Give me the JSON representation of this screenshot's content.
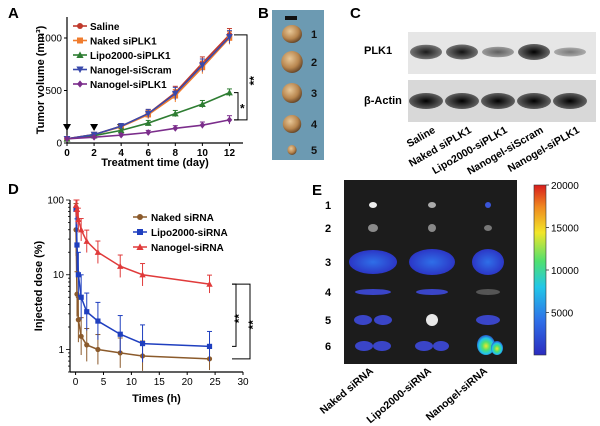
{
  "panels": {
    "A": {
      "label": "A",
      "chart_data": {
        "type": "line",
        "xlabel": "Treatment time (day)",
        "ylabel": "Tumor volume (mm³)",
        "xlim": [
          0,
          13
        ],
        "ylim": [
          0,
          1200
        ],
        "xticks": [
          "0",
          "2",
          "4",
          "6",
          "8",
          "10",
          "12"
        ],
        "yticks": [
          "0",
          "500",
          "1000"
        ],
        "injection_days": [
          0,
          2,
          4
        ],
        "x": [
          0,
          2,
          4,
          6,
          8,
          10,
          12
        ],
        "series": [
          {
            "name": "Saline",
            "color": "#c0392b",
            "marker": "circle",
            "values": [
              40,
              80,
              160,
              280,
              480,
              760,
              1030
            ],
            "errors": [
              10,
              15,
              25,
              40,
              60,
              60,
              60
            ]
          },
          {
            "name": "Naked siPLK1",
            "color": "#f07c2e",
            "marker": "square",
            "values": [
              40,
              80,
              155,
              270,
              450,
              720,
              1000
            ],
            "errors": [
              10,
              15,
              25,
              40,
              60,
              60,
              60
            ]
          },
          {
            "name": "Lipo2000-siPLK1",
            "color": "#2e7d32",
            "marker": "triangle-up",
            "values": [
              40,
              70,
              120,
              190,
              280,
              370,
              480
            ],
            "errors": [
              8,
              12,
              20,
              25,
              30,
              35,
              35
            ]
          },
          {
            "name": "Nanogel-siScram",
            "color": "#3949ab",
            "marker": "triangle-down",
            "values": [
              40,
              80,
              160,
              280,
              470,
              740,
              1010
            ],
            "errors": [
              10,
              15,
              25,
              40,
              60,
              60,
              60
            ]
          },
          {
            "name": "Nanogel-siPLK1",
            "color": "#7b2d8b",
            "marker": "diamond",
            "values": [
              40,
              55,
              75,
              100,
              140,
              170,
              220
            ],
            "errors": [
              8,
              10,
              15,
              20,
              25,
              30,
              40
            ]
          }
        ],
        "significance": [
          "*",
          "**"
        ]
      }
    },
    "B": {
      "label": "B",
      "tumor_numbers": [
        "1",
        "2",
        "3",
        "4",
        "5"
      ]
    },
    "C": {
      "label": "C",
      "bands": [
        "PLK1",
        "β-Actin"
      ],
      "plk1_intensity": [
        0.85,
        0.9,
        0.45,
        1.0,
        0.3
      ],
      "actin_intensity": [
        1.0,
        1.0,
        1.0,
        1.0,
        1.0
      ],
      "lanes": [
        "Saline",
        "Naked siPLK1",
        "Lipo2000-siPLK1",
        "Nanogel-siScram",
        "Nanogel-siPLK1"
      ]
    },
    "D": {
      "label": "D",
      "chart_data": {
        "type": "line",
        "xlabel": "Times (h)",
        "ylabel": "Injected dose (%)",
        "yscale": "log",
        "xlim": [
          -1,
          30
        ],
        "ylim": [
          0.5,
          100
        ],
        "xticks": [
          "0",
          "5",
          "10",
          "15",
          "20",
          "25",
          "30"
        ],
        "yticks": [
          "1",
          "10",
          "100"
        ],
        "x": [
          0.08,
          0.25,
          0.5,
          1,
          2,
          4,
          8,
          12,
          24
        ],
        "series": [
          {
            "name": "Naked siRNA",
            "color": "#8b5a2b",
            "marker": "circle",
            "values": [
              40,
              5.5,
              2.5,
              1.5,
              1.15,
              1.0,
              0.9,
              0.82,
              0.75
            ]
          },
          {
            "name": "Lipo2000-siRNA",
            "color": "#1f3fbf",
            "marker": "square",
            "values": [
              75,
              25,
              10,
              5,
              3.2,
              2.4,
              1.6,
              1.2,
              1.1
            ]
          },
          {
            "name": "Nanogel-siRNA",
            "color": "#e03a3a",
            "marker": "triangle-up",
            "values": [
              85,
              75,
              55,
              40,
              28,
              20,
              13,
              10,
              7.5
            ]
          }
        ],
        "significance": [
          "**",
          "**"
        ]
      }
    },
    "E": {
      "label": "E",
      "row_numbers": [
        "1",
        "2",
        "3",
        "4",
        "5",
        "6"
      ],
      "columns": [
        "Naked siRNA",
        "Lipo2000-siRNA",
        "Nanogel-siRNA"
      ],
      "colorbar_ticks": [
        "20000",
        "15000",
        "10000",
        "5000"
      ]
    }
  }
}
